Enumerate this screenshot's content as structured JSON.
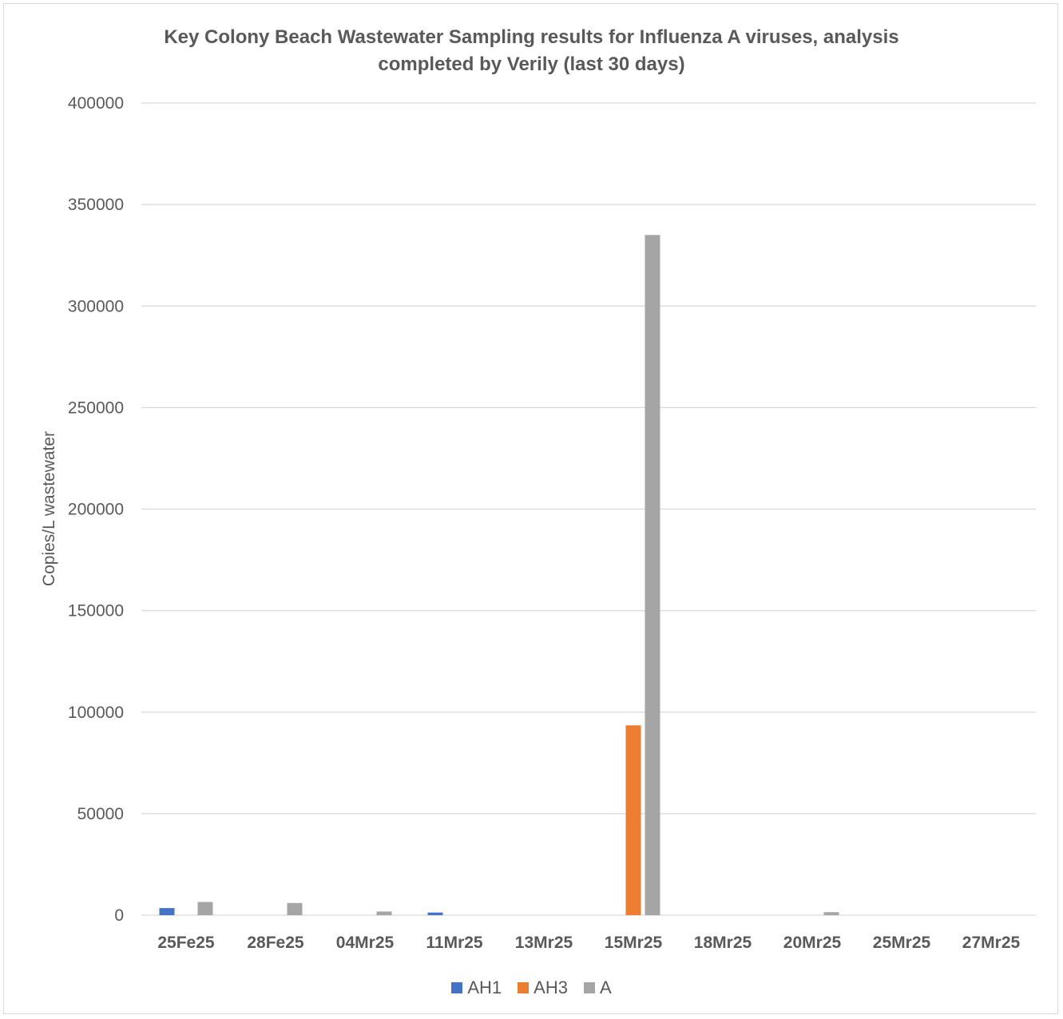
{
  "chart_data": {
    "type": "bar",
    "title": "Key Colony Beach Wastewater Sampling results for Influenza A  viruses, analysis\ncompleted by Verily (last 30 days)",
    "xlabel": "",
    "ylabel": "Copies/L wastewater",
    "ylim": [
      0,
      400000
    ],
    "yticks": [
      "0",
      "50000",
      "100000",
      "150000",
      "200000",
      "250000",
      "300000",
      "350000",
      "400000"
    ],
    "grid": true,
    "legend_position": "bottom",
    "categories": [
      "25Fe25",
      "28Fe25",
      "04Mr25",
      "11Mr25",
      "13Mr25",
      "15Mr25",
      "18Mr25",
      "20Mr25",
      "25Mr25",
      "27Mr25"
    ],
    "series": [
      {
        "name": "AH1",
        "color": "#4472c4",
        "values": [
          3500,
          0,
          0,
          1300,
          0,
          0,
          0,
          0,
          0,
          0
        ]
      },
      {
        "name": "AH3",
        "color": "#ed7d31",
        "values": [
          0,
          0,
          0,
          0,
          0,
          93500,
          0,
          0,
          0,
          0
        ]
      },
      {
        "name": "A",
        "color": "#a5a5a5",
        "values": [
          6500,
          6000,
          1800,
          0,
          0,
          335000,
          0,
          1500,
          0,
          0
        ]
      }
    ]
  }
}
